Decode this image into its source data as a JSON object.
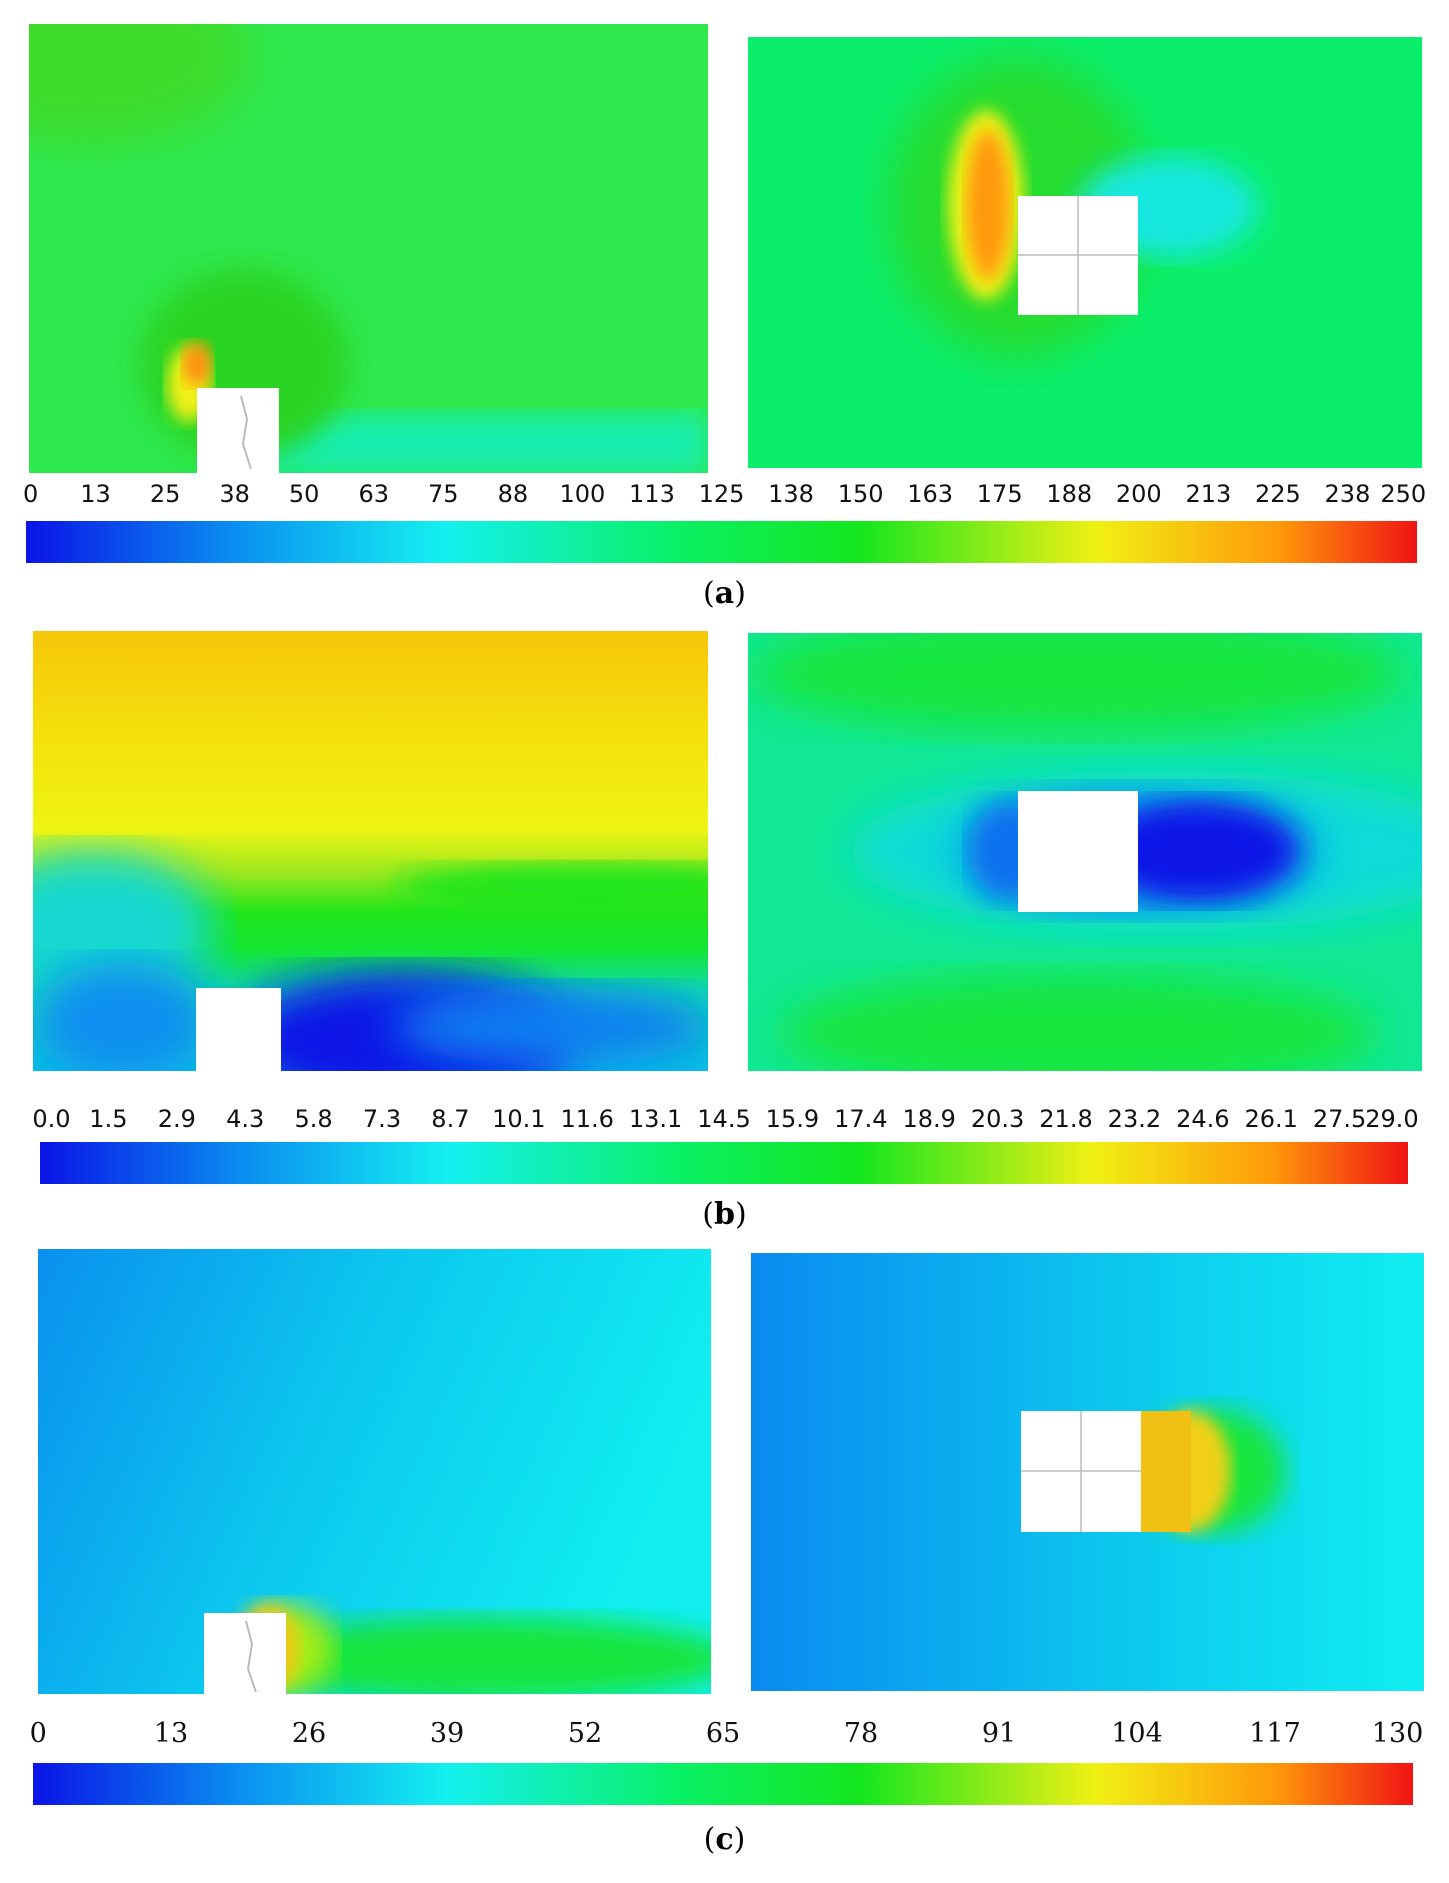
{
  "panels": [
    {
      "caption_open": "(",
      "caption_letter": "a",
      "caption_close": ")",
      "colorbar_ticks": [
        "0",
        "13",
        "25",
        "38",
        "50",
        "63",
        "75",
        "88",
        "100",
        "113",
        "125",
        "138",
        "150",
        "163",
        "175",
        "188",
        "200",
        "213",
        "225",
        "238",
        "250"
      ]
    },
    {
      "caption_open": "(",
      "caption_letter": "b",
      "caption_close": ")",
      "colorbar_ticks": [
        "0.0",
        "1.5",
        "2.9",
        "4.3",
        "5.8",
        "7.3",
        "8.7",
        "10.1",
        "11.6",
        "13.1",
        "14.5",
        "15.9",
        "17.4",
        "18.9",
        "20.3",
        "21.8",
        "23.2",
        "24.6",
        "26.1",
        "27.5",
        "29.0"
      ]
    },
    {
      "caption_open": "(",
      "caption_letter": "c",
      "caption_close": ")",
      "colorbar_ticks": [
        "0",
        "13",
        "26",
        "39",
        "52",
        "65",
        "78",
        "91",
        "104",
        "117",
        "130"
      ]
    }
  ],
  "colors": {
    "colormap": [
      "#0a14e6",
      "#0a8ff0",
      "#14f0f0",
      "#0af064",
      "#14e61e",
      "#f0f014",
      "#ff9a0a",
      "#f01414"
    ],
    "cube": "#ffffff"
  }
}
